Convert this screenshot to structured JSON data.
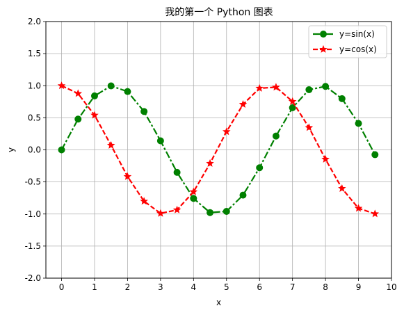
{
  "chart_data": {
    "type": "line",
    "title": "我的第一个 Python 图表",
    "xlabel": "x",
    "ylabel": "y",
    "xlim": [
      -0.475,
      10
    ],
    "ylim": [
      -2.0,
      2.0
    ],
    "xticks": [
      0,
      1,
      2,
      3,
      4,
      5,
      6,
      7,
      8,
      9,
      10
    ],
    "xtick_labels": [
      "0",
      "1",
      "2",
      "3",
      "4",
      "5",
      "6",
      "7",
      "8",
      "9",
      "10"
    ],
    "yticks": [
      -2.0,
      -1.5,
      -1.0,
      -0.5,
      0.0,
      0.5,
      1.0,
      1.5,
      2.0
    ],
    "ytick_labels": [
      "-2.0",
      "-1.5",
      "-1.0",
      "-0.5",
      "0.0",
      "0.5",
      "1.0",
      "1.5",
      "2.0"
    ],
    "grid": true,
    "legend_position": "top-right",
    "x": [
      0,
      0.5,
      1,
      1.5,
      2,
      2.5,
      3,
      3.5,
      4,
      4.5,
      5,
      5.5,
      6,
      6.5,
      7,
      7.5,
      8,
      8.5,
      9,
      9.5
    ],
    "series": [
      {
        "name": "y=sin(x)",
        "color": "#008000",
        "line_style": "dashdot",
        "marker": "circle",
        "values": [
          0.0,
          0.479,
          0.841,
          0.997,
          0.909,
          0.598,
          0.141,
          -0.351,
          -0.757,
          -0.978,
          -0.959,
          -0.706,
          -0.279,
          0.215,
          0.657,
          0.938,
          0.989,
          0.798,
          0.412,
          -0.075
        ]
      },
      {
        "name": "y=cos(x)",
        "color": "#ff0000",
        "line_style": "dashed",
        "marker": "star",
        "values": [
          1.0,
          0.878,
          0.54,
          0.071,
          -0.416,
          -0.801,
          -0.99,
          -0.936,
          -0.654,
          -0.211,
          0.284,
          0.709,
          0.96,
          0.977,
          0.754,
          0.347,
          -0.146,
          -0.602,
          -0.911,
          -0.997
        ]
      }
    ]
  }
}
